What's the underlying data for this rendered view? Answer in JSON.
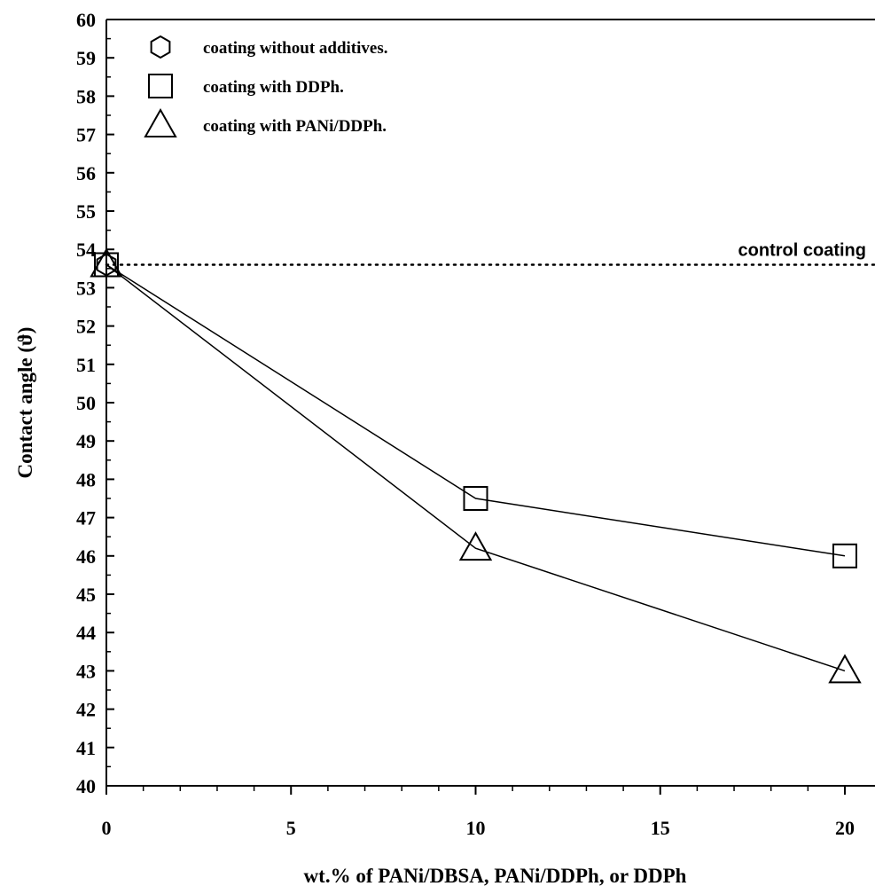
{
  "chart_data": {
    "type": "line",
    "title": "",
    "xlabel": "wt.% of PANi/DBSA, PANi/DDPh, or DDPh",
    "ylabel": "Contact angle (ϑ)",
    "xlim": [
      0,
      21
    ],
    "ylim": [
      40,
      60
    ],
    "x_ticks": [
      0,
      5,
      10,
      15,
      20
    ],
    "y_ticks": [
      40,
      41,
      42,
      43,
      44,
      45,
      46,
      47,
      48,
      49,
      50,
      51,
      52,
      53,
      54,
      55,
      56,
      57,
      58,
      59,
      60
    ],
    "grid": false,
    "legend_position": "top-left",
    "series": [
      {
        "name": "coating without additives.",
        "marker": "hexagon",
        "x": [
          0
        ],
        "y": [
          53.6
        ]
      },
      {
        "name": "coating with DDPh.",
        "marker": "square",
        "x": [
          0,
          10,
          20
        ],
        "y": [
          53.6,
          47.5,
          46.0
        ]
      },
      {
        "name": "coating with PANi/DDPh.",
        "marker": "triangle",
        "x": [
          0,
          10,
          20
        ],
        "y": [
          53.6,
          46.2,
          43.0
        ]
      }
    ],
    "reference_line": {
      "label": "control coating",
      "y": 53.6,
      "style": "dotted"
    }
  }
}
